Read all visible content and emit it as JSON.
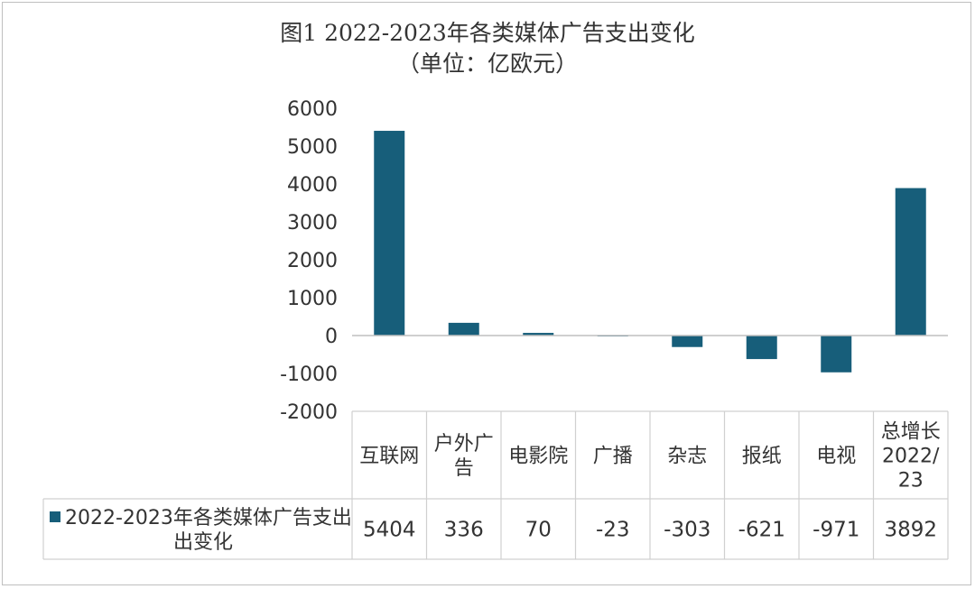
{
  "chart_data": {
    "type": "bar",
    "title": "图1 2022-2023年各类媒体广告支出变化",
    "subtitle": "（单位：亿欧元）",
    "categories": [
      [
        "互联网"
      ],
      [
        "户外广",
        "告"
      ],
      [
        "电影院"
      ],
      [
        "广播"
      ],
      [
        "杂志"
      ],
      [
        "报纸"
      ],
      [
        "电视"
      ],
      [
        "总增长",
        "2022/",
        "23"
      ]
    ],
    "series": [
      {
        "name": "2022-2023年各类媒体广告支出变化",
        "values": [
          5404,
          336,
          70,
          -23,
          -303,
          -621,
          -971,
          3892
        ],
        "labels": [
          "5404",
          "336",
          "70",
          "-23",
          "-303",
          "-621",
          "-971",
          "3892"
        ],
        "color": "#175e7a"
      }
    ],
    "legend_label_lines": [
      "2022-2023年各类媒体广告支出",
      "出变化"
    ],
    "ylim": [
      -2000,
      6000
    ],
    "yticks": [
      6000,
      5000,
      4000,
      3000,
      2000,
      1000,
      0,
      -1000,
      -2000
    ],
    "data_table": true,
    "grid": false,
    "legend_position": "data-table"
  }
}
